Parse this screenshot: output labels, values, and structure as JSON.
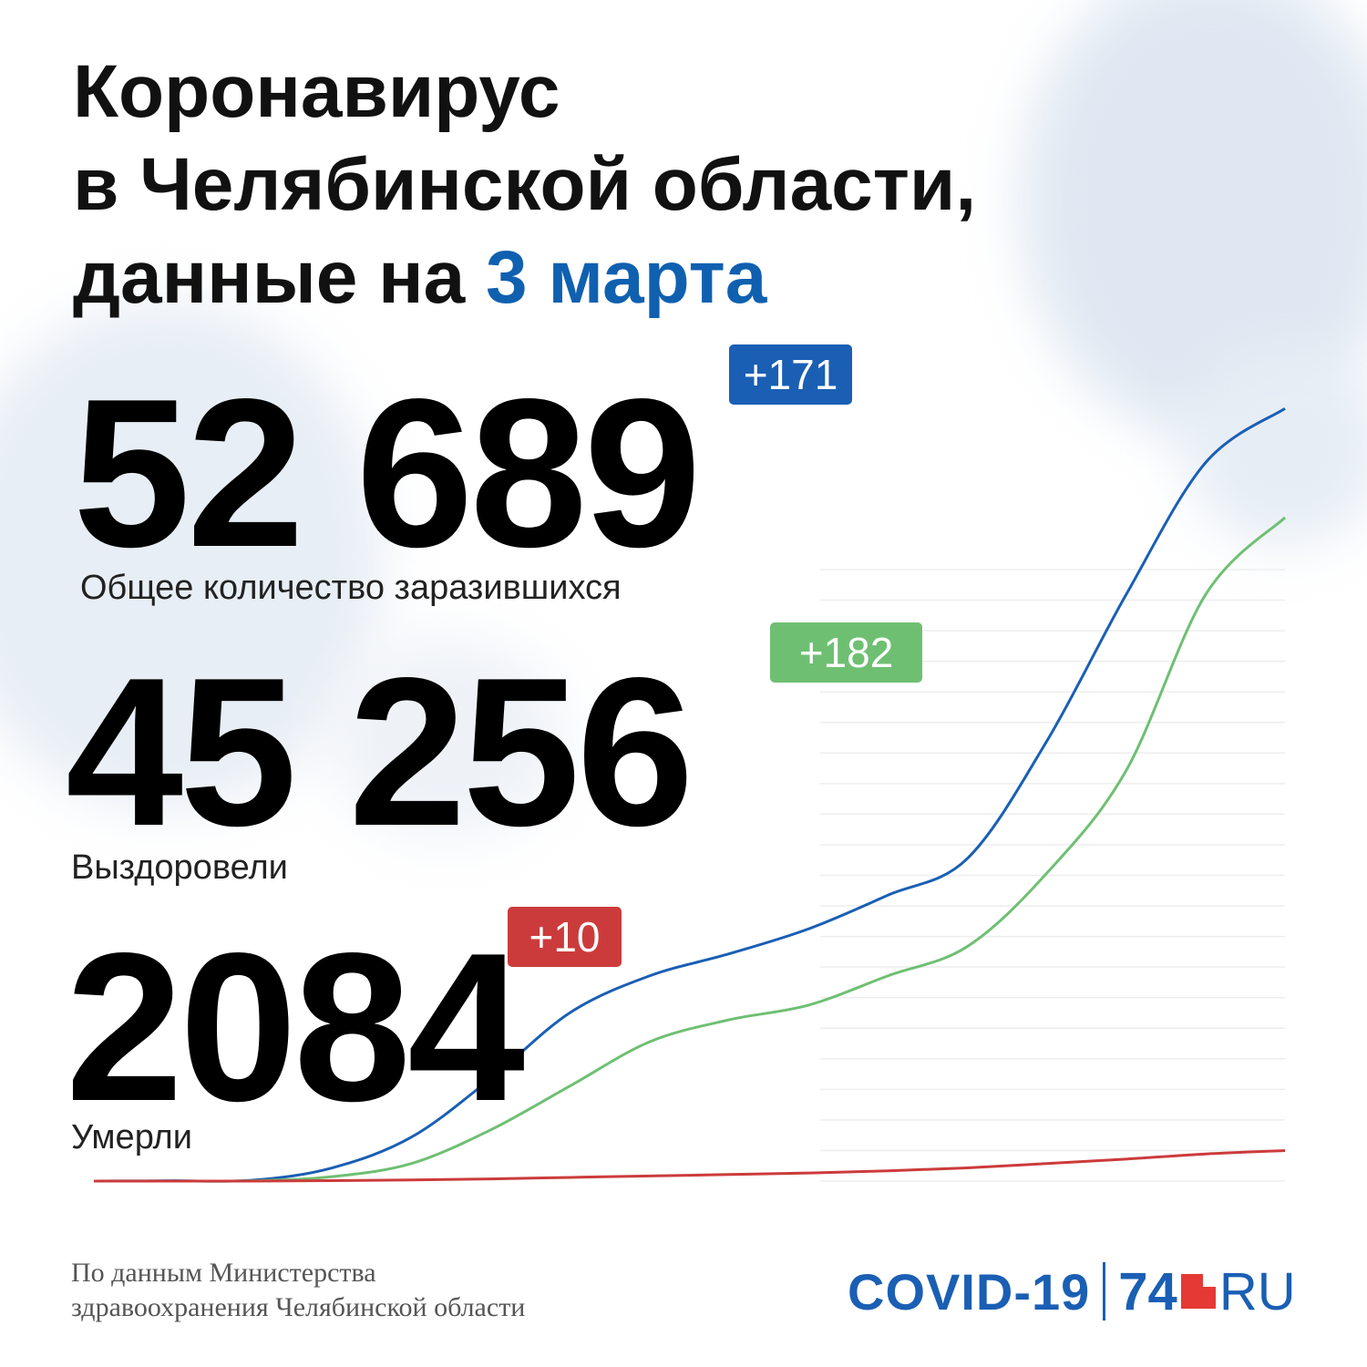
{
  "title": {
    "line1": "Коронавирус",
    "line2": "в Челябинской области,",
    "line3_prefix": "данные на ",
    "line3_date": "3 марта"
  },
  "stats": {
    "infected": {
      "value": "52 689",
      "delta": "+171",
      "label": "Общее количество заразившихся",
      "color": "#1a5fb4"
    },
    "recovered": {
      "value": "45 256",
      "delta": "+182",
      "label": "Выздоровели",
      "color": "#6fbf73"
    },
    "deaths": {
      "value": "2084",
      "delta": "+10",
      "label": "Умерли",
      "color": "#cc3b3b"
    }
  },
  "footer": {
    "source_line1": "По данным Министерства",
    "source_line2": "здравоохранения Челябинской области",
    "logo_covid": "COVID-19",
    "logo_num": "74",
    "logo_ru": "RU"
  },
  "chart_data": {
    "type": "line",
    "grid": true,
    "ylim": [
      0,
      56000
    ],
    "series": [
      {
        "name": "Общее количество заразившихся",
        "color": "#1a5fb4",
        "values": [
          0,
          20,
          60,
          900,
          3000,
          7000,
          11500,
          14000,
          15500,
          17200,
          19500,
          22000,
          30000,
          40000,
          49000,
          52689
        ]
      },
      {
        "name": "Выздоровели",
        "color": "#6fbf73",
        "values": [
          0,
          0,
          20,
          300,
          1200,
          3500,
          6500,
          9500,
          11000,
          12000,
          14000,
          16000,
          21000,
          28000,
          40000,
          45256
        ]
      },
      {
        "name": "Умерли",
        "color": "#cc3b3b",
        "values": [
          0,
          0,
          0,
          30,
          80,
          150,
          250,
          350,
          450,
          550,
          700,
          900,
          1200,
          1500,
          1850,
          2084
        ]
      }
    ]
  }
}
